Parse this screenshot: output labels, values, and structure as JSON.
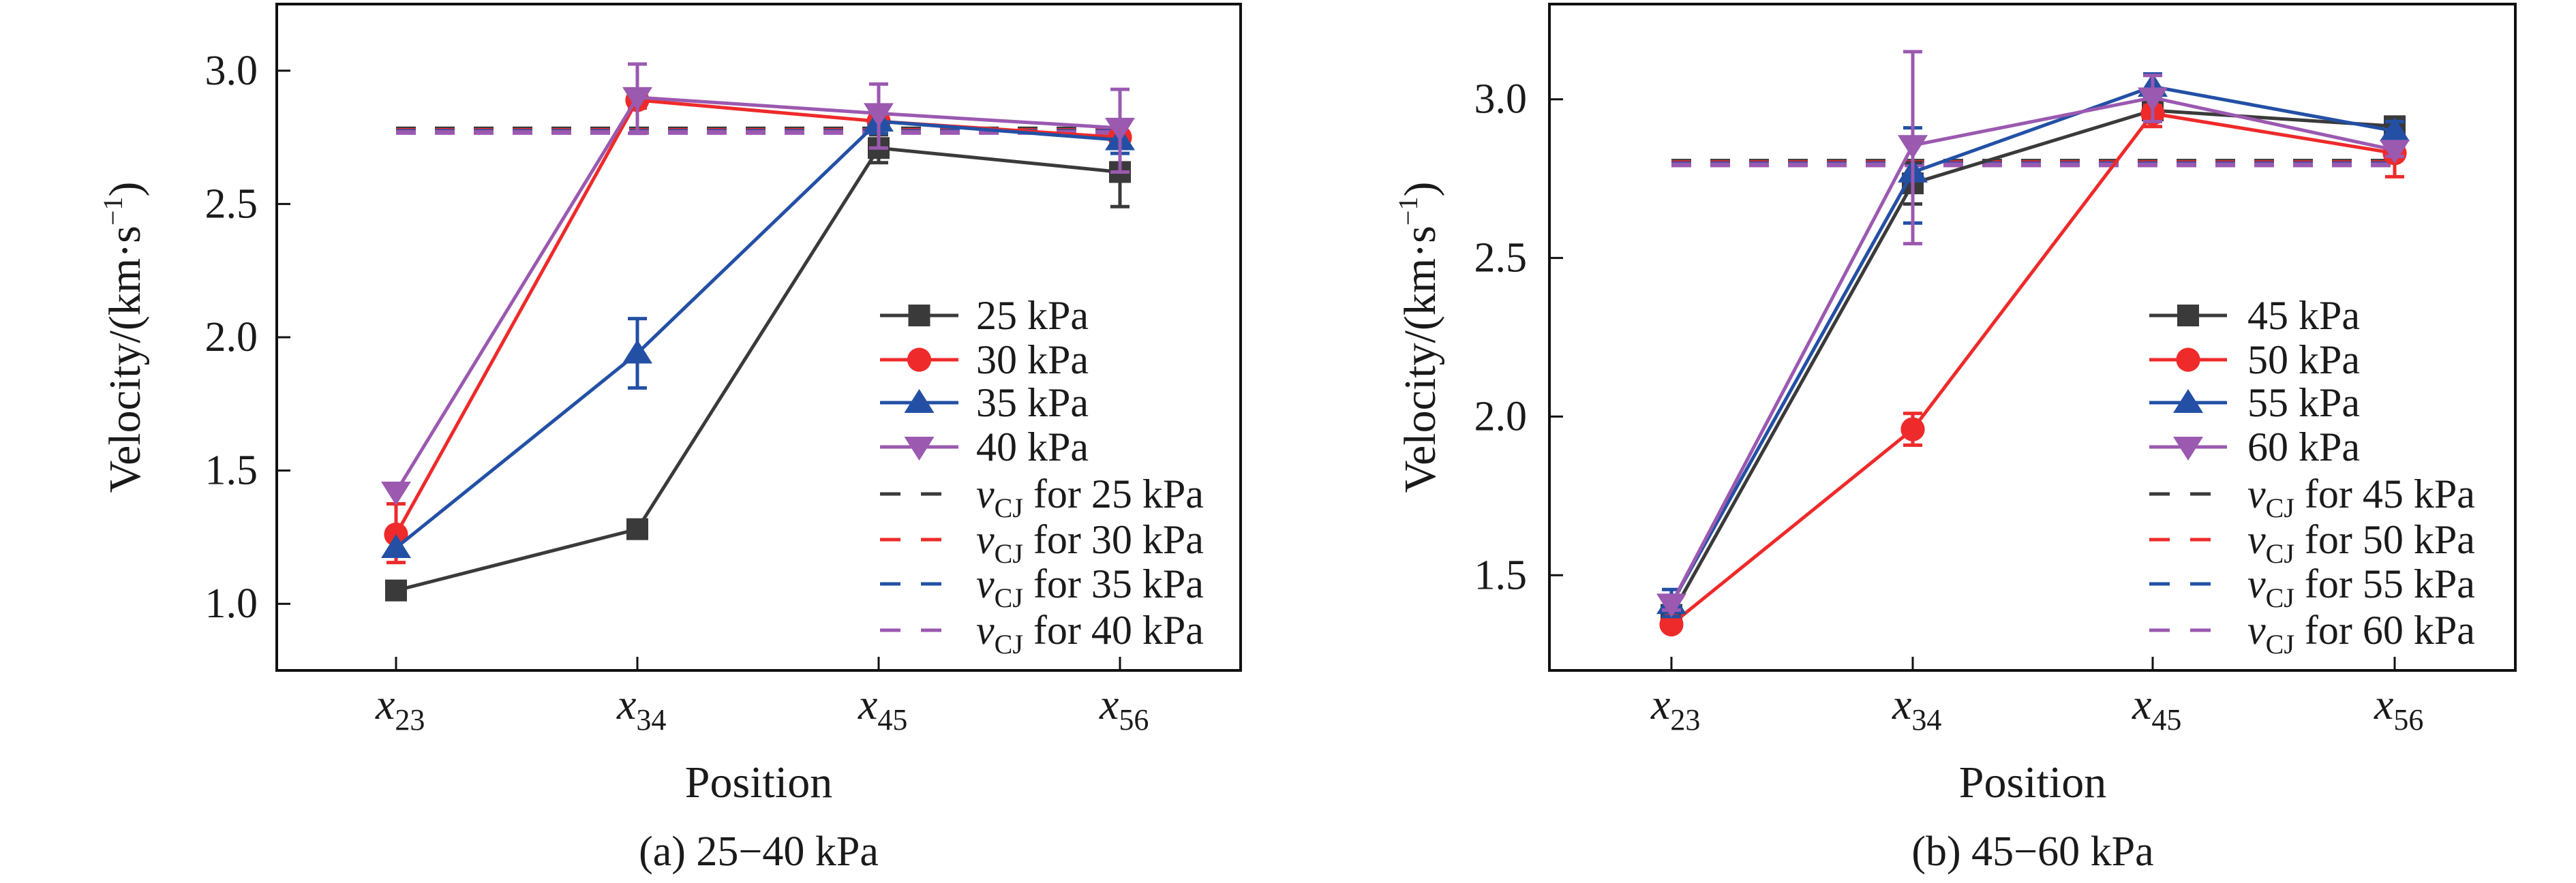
{
  "figure": {
    "panels": [
      {
        "id": "a",
        "caption": "(a) 25−40 kPa",
        "ylabel_main": "Velocity/(km·s",
        "ylabel_sup": "−1",
        "ylabel_close": ")",
        "xlabel": "Position",
        "legend_vcj_prefix": "v",
        "legend_vcj_sub": "CJ"
      },
      {
        "id": "b",
        "caption": "(b) 45−60 kPa",
        "ylabel_main": "Velocity/(km·s",
        "ylabel_sup": "−1",
        "ylabel_close": ")",
        "xlabel": "Position",
        "legend_vcj_prefix": "v",
        "legend_vcj_sub": "CJ"
      }
    ],
    "colors": {
      "black": "#3a3a3a",
      "red": "#ee2a2a",
      "blue": "#2350a5",
      "purple": "#9b59b0",
      "axis": "#111111"
    }
  },
  "chart_data": [
    {
      "type": "line",
      "title": "(a) 25−40 kPa",
      "xlabel": "Position",
      "ylabel": "Velocity/(km·s⁻¹)",
      "categories": [
        "x23",
        "x34",
        "x45",
        "x56"
      ],
      "category_labels": [
        {
          "main": "x",
          "sub": "23"
        },
        {
          "main": "x",
          "sub": "34"
        },
        {
          "main": "x",
          "sub": "45"
        },
        {
          "main": "x",
          "sub": "56"
        }
      ],
      "ylim": [
        0.75,
        3.25
      ],
      "yticks": [
        1.0,
        1.5,
        2.0,
        2.5,
        3.0
      ],
      "ytick_labels": [
        "1.0",
        "1.5",
        "2.0",
        "2.5",
        "3.0"
      ],
      "grid": false,
      "legend_position": "bottom-right",
      "series": [
        {
          "name": "25 kPa",
          "label": "25 kPa",
          "color_key": "black",
          "marker": "square",
          "values": [
            1.05,
            1.28,
            2.71,
            2.62
          ],
          "err_low": [
            1.05,
            1.28,
            2.655,
            2.49
          ],
          "err_high": [
            1.05,
            1.28,
            2.76,
            2.74
          ]
        },
        {
          "name": "30 kPa",
          "label": "30 kPa",
          "color_key": "red",
          "marker": "circle",
          "values": [
            1.26,
            2.89,
            2.81,
            2.75
          ],
          "err_low": [
            1.155,
            2.86,
            2.79,
            2.73
          ],
          "err_high": [
            1.375,
            2.92,
            2.83,
            2.77
          ]
        },
        {
          "name": "35 kPa",
          "label": "35 kPa",
          "color_key": "blue",
          "marker": "triangle-up",
          "values": [
            1.21,
            1.94,
            2.81,
            2.74
          ],
          "err_low": [
            1.21,
            1.81,
            2.765,
            2.69
          ],
          "err_high": [
            1.21,
            2.07,
            2.87,
            2.8
          ]
        },
        {
          "name": "40 kPa",
          "label": "40 kPa",
          "color_key": "purple",
          "marker": "triangle-down",
          "values": [
            1.42,
            2.9,
            2.84,
            2.785
          ],
          "err_low": [
            1.42,
            2.765,
            2.71,
            2.62
          ],
          "err_high": [
            1.42,
            3.025,
            2.95,
            2.93
          ]
        }
      ],
      "reference_lines": [
        {
          "name": "vCJ for 25 kPa",
          "label_rest": " for 25 kPa",
          "color_key": "black",
          "value": 2.77
        },
        {
          "name": "vCJ for 30 kPa",
          "label_rest": " for 30 kPa",
          "color_key": "red",
          "value": 2.772
        },
        {
          "name": "vCJ for 35 kPa",
          "label_rest": " for 35 kPa",
          "color_key": "blue",
          "value": 2.776
        },
        {
          "name": "vCJ for 40 kPa",
          "label_rest": " for 40 kPa",
          "color_key": "purple",
          "value": 2.78
        }
      ]
    },
    {
      "type": "line",
      "title": "(b) 45−60 kPa",
      "xlabel": "Position",
      "ylabel": "Velocity/(km·s⁻¹)",
      "categories": [
        "x23",
        "x34",
        "x45",
        "x56"
      ],
      "category_labels": [
        {
          "main": "x",
          "sub": "23"
        },
        {
          "main": "x",
          "sub": "34"
        },
        {
          "main": "x",
          "sub": "45"
        },
        {
          "main": "x",
          "sub": "56"
        }
      ],
      "ylim": [
        1.2,
        3.3
      ],
      "yticks": [
        1.5,
        2.0,
        2.5,
        3.0
      ],
      "ytick_labels": [
        "1.5",
        "2.0",
        "2.5",
        "3.0"
      ],
      "grid": false,
      "legend_position": "bottom-right",
      "series": [
        {
          "name": "45 kPa",
          "label": "45 kPa",
          "color_key": "black",
          "marker": "square",
          "values": [
            1.375,
            2.735,
            2.965,
            2.915
          ],
          "err_low": [
            1.36,
            2.67,
            2.946,
            2.9
          ],
          "err_high": [
            1.39,
            2.8,
            2.98,
            2.93
          ]
        },
        {
          "name": "50 kPa",
          "label": "50 kPa",
          "color_key": "red",
          "marker": "circle",
          "values": [
            1.345,
            1.96,
            2.955,
            2.83
          ],
          "err_low": [
            1.345,
            1.91,
            2.914,
            2.756
          ],
          "err_high": [
            1.345,
            2.01,
            2.98,
            2.89
          ]
        },
        {
          "name": "55 kPa",
          "label": "55 kPa",
          "color_key": "blue",
          "marker": "triangle-up",
          "values": [
            1.41,
            2.77,
            3.04,
            2.9
          ],
          "err_low": [
            1.37,
            2.61,
            3.01,
            2.87
          ],
          "err_high": [
            1.455,
            2.91,
            3.08,
            2.93
          ]
        },
        {
          "name": "60 kPa",
          "label": "60 kPa",
          "color_key": "purple",
          "marker": "triangle-down",
          "values": [
            1.41,
            2.855,
            3.005,
            2.84
          ],
          "err_low": [
            1.39,
            2.545,
            2.93,
            2.82
          ],
          "err_high": [
            1.43,
            3.15,
            3.075,
            2.86
          ]
        }
      ],
      "reference_lines": [
        {
          "name": "vCJ for 45 kPa",
          "label_rest": " for 45 kPa",
          "color_key": "black",
          "value": 2.795
        },
        {
          "name": "vCJ for 50 kPa",
          "label_rest": " for 50 kPa",
          "color_key": "red",
          "value": 2.797
        },
        {
          "name": "vCJ for 55 kPa",
          "label_rest": " for 55 kPa",
          "color_key": "blue",
          "value": 2.8
        },
        {
          "name": "vCJ for 60 kPa",
          "label_rest": " for 60 kPa",
          "color_key": "purple",
          "value": 2.803
        }
      ]
    }
  ]
}
